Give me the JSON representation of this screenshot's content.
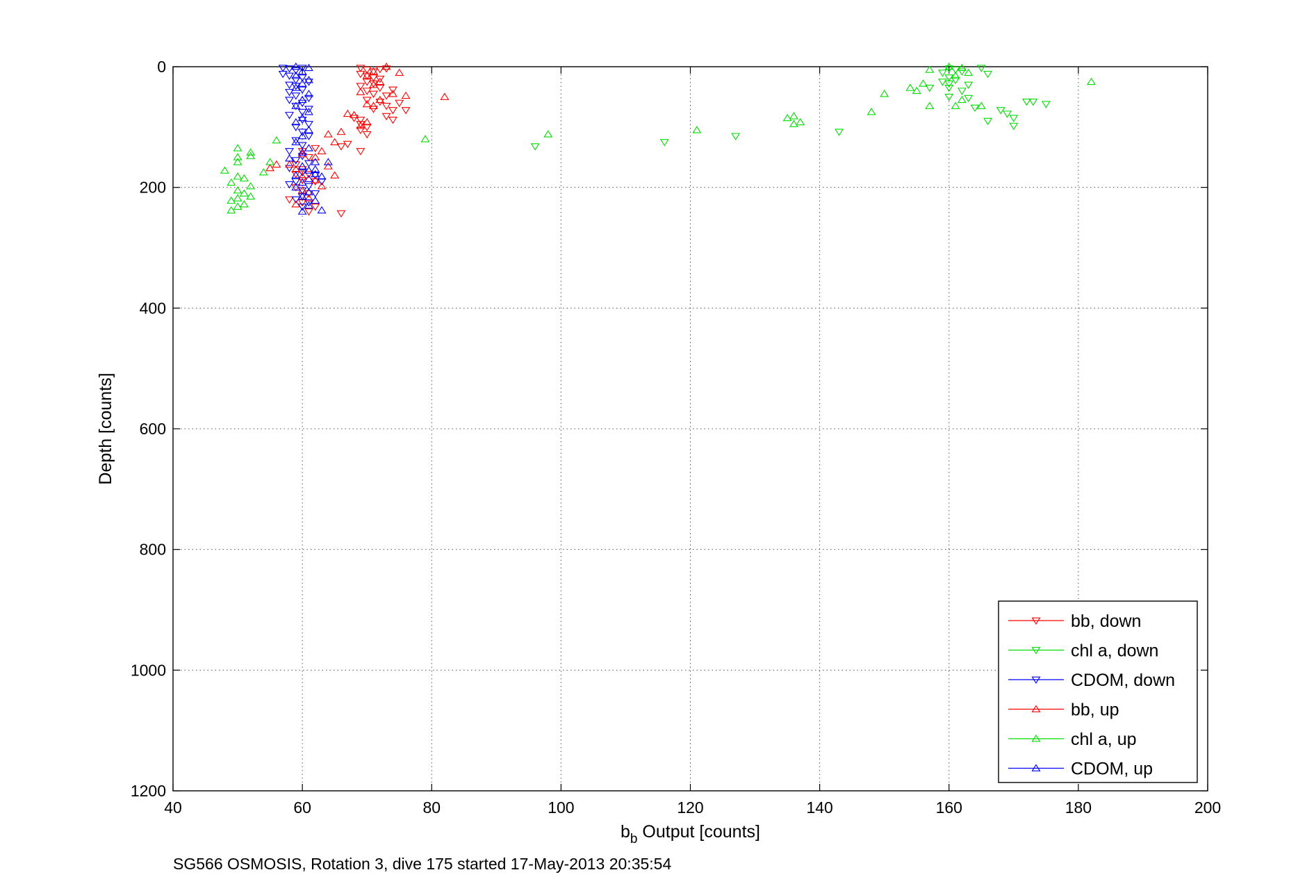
{
  "chart_data": {
    "type": "scatter",
    "title": "",
    "xlabel_main": "b",
    "xlabel_sub": "b",
    "xlabel_rest": " Output [counts]",
    "ylabel": "Depth [counts]",
    "caption": "SG566 OSMOSIS, Rotation 3, dive 175 started 17-May-2013 20:35:54",
    "xlim": [
      40,
      200
    ],
    "ylim": [
      0,
      1200
    ],
    "y_reversed": true,
    "grid": true,
    "legend_position": "bottom-right",
    "xticks": [
      "40",
      "60",
      "80",
      "100",
      "120",
      "140",
      "160",
      "180",
      "200"
    ],
    "yticks": [
      "0",
      "200",
      "400",
      "600",
      "800",
      "1000",
      "1200"
    ],
    "series": [
      {
        "name": "bb, down",
        "color": "#ff0000",
        "marker": "triangle-down",
        "points": [
          [
            69,
            2
          ],
          [
            70,
            5
          ],
          [
            71,
            8
          ],
          [
            72,
            4
          ],
          [
            73,
            3
          ],
          [
            69,
            12
          ],
          [
            70,
            15
          ],
          [
            71,
            18
          ],
          [
            72,
            20
          ],
          [
            70,
            25
          ],
          [
            71,
            28
          ],
          [
            69,
            32
          ],
          [
            72,
            35
          ],
          [
            70,
            40
          ],
          [
            71,
            45
          ],
          [
            74,
            38
          ],
          [
            73,
            48
          ],
          [
            70,
            55
          ],
          [
            72,
            58
          ],
          [
            75,
            60
          ],
          [
            73,
            65
          ],
          [
            71,
            70
          ],
          [
            74,
            72
          ],
          [
            76,
            72
          ],
          [
            73,
            82
          ],
          [
            74,
            88
          ],
          [
            69,
            88
          ],
          [
            69,
            95
          ],
          [
            70,
            100
          ],
          [
            68,
            85
          ],
          [
            69,
            105
          ],
          [
            70,
            112
          ],
          [
            67,
            128
          ],
          [
            66,
            132
          ],
          [
            69,
            140
          ],
          [
            62,
            135
          ],
          [
            60,
            140
          ],
          [
            61,
            150
          ],
          [
            59,
            162
          ],
          [
            60,
            170
          ],
          [
            59,
            178
          ],
          [
            61,
            178
          ],
          [
            60,
            188
          ],
          [
            62,
            190
          ],
          [
            59,
            200
          ],
          [
            61,
            210
          ],
          [
            60,
            215
          ],
          [
            58,
            220
          ],
          [
            60,
            225
          ],
          [
            62,
            232
          ],
          [
            61,
            240
          ],
          [
            66,
            243
          ]
        ]
      },
      {
        "name": "chl a, down",
        "color": "#00dd00",
        "marker": "triangle-down",
        "points": [
          [
            160,
            3
          ],
          [
            161,
            5
          ],
          [
            162,
            8
          ],
          [
            159,
            10
          ],
          [
            165,
            2
          ],
          [
            166,
            12
          ],
          [
            160,
            18
          ],
          [
            161,
            22
          ],
          [
            160,
            28
          ],
          [
            159,
            25
          ],
          [
            163,
            30
          ],
          [
            160,
            35
          ],
          [
            157,
            35
          ],
          [
            162,
            40
          ],
          [
            163,
            52
          ],
          [
            160,
            50
          ],
          [
            164,
            68
          ],
          [
            168,
            72
          ],
          [
            169,
            78
          ],
          [
            170,
            85
          ],
          [
            166,
            90
          ],
          [
            170,
            98
          ],
          [
            172,
            58
          ],
          [
            173,
            58
          ],
          [
            175,
            62
          ],
          [
            143,
            108
          ],
          [
            127,
            115
          ],
          [
            116,
            125
          ],
          [
            96,
            132
          ]
        ]
      },
      {
        "name": "CDOM, down",
        "color": "#0000ff",
        "marker": "triangle-down",
        "points": [
          [
            57,
            2
          ],
          [
            58,
            3
          ],
          [
            60,
            2
          ],
          [
            59,
            6
          ],
          [
            57,
            12
          ],
          [
            58,
            15
          ],
          [
            60,
            18
          ],
          [
            59,
            22
          ],
          [
            61,
            25
          ],
          [
            58,
            30
          ],
          [
            59,
            32
          ],
          [
            60,
            38
          ],
          [
            58,
            42
          ],
          [
            59,
            48
          ],
          [
            61,
            52
          ],
          [
            58,
            55
          ],
          [
            60,
            60
          ],
          [
            59,
            65
          ],
          [
            61,
            70
          ],
          [
            60,
            75
          ],
          [
            58,
            80
          ],
          [
            60,
            88
          ],
          [
            61,
            95
          ],
          [
            59,
            100
          ],
          [
            60,
            108
          ],
          [
            61,
            115
          ],
          [
            59,
            122
          ],
          [
            60,
            130
          ],
          [
            58,
            140
          ],
          [
            60,
            148
          ],
          [
            59,
            155
          ],
          [
            61,
            160
          ],
          [
            58,
            168
          ],
          [
            60,
            175
          ],
          [
            62,
            180
          ],
          [
            59,
            190
          ],
          [
            61,
            198
          ],
          [
            60,
            205
          ],
          [
            62,
            210
          ],
          [
            60,
            215
          ],
          [
            59,
            220
          ],
          [
            61,
            225
          ],
          [
            60,
            232
          ],
          [
            63,
            190
          ],
          [
            58,
            195
          ]
        ]
      },
      {
        "name": "bb, up",
        "color": "#ff0000",
        "marker": "triangle-up",
        "points": [
          [
            73,
            0
          ],
          [
            71,
            8
          ],
          [
            75,
            10
          ],
          [
            70,
            15
          ],
          [
            72,
            25
          ],
          [
            71,
            30
          ],
          [
            69,
            42
          ],
          [
            74,
            45
          ],
          [
            76,
            48
          ],
          [
            82,
            50
          ],
          [
            72,
            55
          ],
          [
            70,
            62
          ],
          [
            71,
            65
          ],
          [
            68,
            80
          ],
          [
            67,
            78
          ],
          [
            70,
            92
          ],
          [
            69,
            98
          ],
          [
            66,
            108
          ],
          [
            64,
            112
          ],
          [
            65,
            125
          ],
          [
            63,
            140
          ],
          [
            62,
            150
          ],
          [
            60,
            145
          ],
          [
            64,
            165
          ],
          [
            59,
            170
          ],
          [
            58,
            162
          ],
          [
            56,
            162
          ],
          [
            55,
            168
          ],
          [
            60,
            182
          ],
          [
            62,
            188
          ],
          [
            65,
            180
          ],
          [
            63,
            198
          ],
          [
            60,
            205
          ],
          [
            61,
            218
          ],
          [
            59,
            228
          ]
        ]
      },
      {
        "name": "chl a, up",
        "color": "#00dd00",
        "marker": "triangle-up",
        "points": [
          [
            157,
            5
          ],
          [
            160,
            0
          ],
          [
            162,
            2
          ],
          [
            163,
            10
          ],
          [
            161,
            15
          ],
          [
            182,
            25
          ],
          [
            156,
            28
          ],
          [
            154,
            35
          ],
          [
            155,
            40
          ],
          [
            150,
            45
          ],
          [
            162,
            55
          ],
          [
            161,
            65
          ],
          [
            165,
            65
          ],
          [
            157,
            65
          ],
          [
            148,
            75
          ],
          [
            135,
            85
          ],
          [
            136,
            82
          ],
          [
            137,
            92
          ],
          [
            136,
            95
          ],
          [
            121,
            105
          ],
          [
            98,
            112
          ],
          [
            79,
            120
          ],
          [
            56,
            122
          ],
          [
            50,
            135
          ],
          [
            52,
            142
          ],
          [
            50,
            150
          ],
          [
            52,
            148
          ],
          [
            55,
            158
          ],
          [
            54,
            175
          ],
          [
            50,
            158
          ],
          [
            48,
            172
          ],
          [
            50,
            182
          ],
          [
            51,
            185
          ],
          [
            49,
            192
          ],
          [
            52,
            198
          ],
          [
            50,
            205
          ],
          [
            51,
            210
          ],
          [
            52,
            215
          ],
          [
            50,
            218
          ],
          [
            49,
            222
          ],
          [
            51,
            228
          ],
          [
            50,
            232
          ],
          [
            49,
            238
          ]
        ]
      },
      {
        "name": "CDOM, up",
        "color": "#0000ff",
        "marker": "triangle-up",
        "points": [
          [
            59,
            0
          ],
          [
            61,
            2
          ],
          [
            60,
            8
          ],
          [
            59,
            15
          ],
          [
            61,
            22
          ],
          [
            60,
            28
          ],
          [
            59,
            35
          ],
          [
            61,
            45
          ],
          [
            60,
            55
          ],
          [
            59,
            65
          ],
          [
            61,
            75
          ],
          [
            60,
            85
          ],
          [
            59,
            92
          ],
          [
            61,
            105
          ],
          [
            60,
            115
          ],
          [
            59,
            125
          ],
          [
            61,
            135
          ],
          [
            60,
            142
          ],
          [
            58,
            152
          ],
          [
            62,
            158
          ],
          [
            60,
            165
          ],
          [
            61,
            172
          ],
          [
            59,
            180
          ],
          [
            62,
            178
          ],
          [
            61,
            186
          ],
          [
            60,
            192
          ],
          [
            59,
            200
          ],
          [
            61,
            208
          ],
          [
            60,
            215
          ],
          [
            62,
            222
          ],
          [
            61,
            230
          ],
          [
            63,
            238
          ],
          [
            60,
            240
          ],
          [
            64,
            158
          ],
          [
            62,
            170
          ],
          [
            63,
            182
          ]
        ]
      }
    ]
  }
}
